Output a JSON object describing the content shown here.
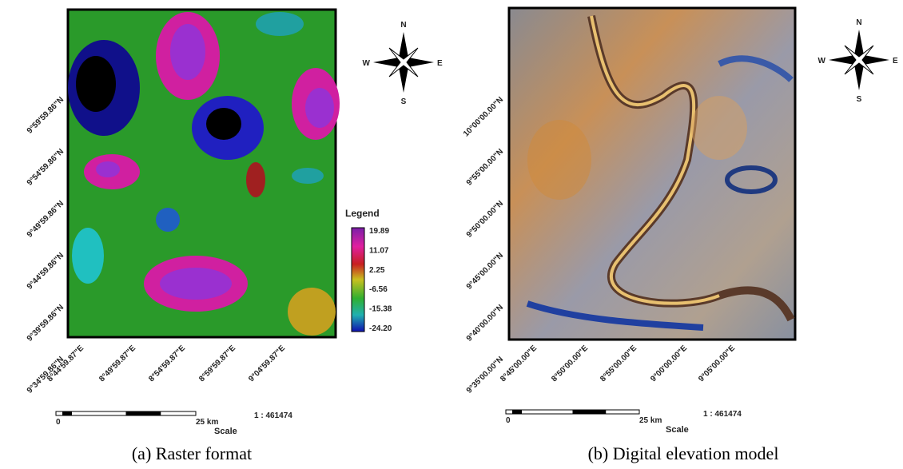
{
  "panels": [
    {
      "caption": "(a) Raster format",
      "lat_labels": [
        "9°59'59.86\"N",
        "9°54'59.86\"N",
        "9°49'59.86\"N",
        "9°44'59.86\"N",
        "9°39'59.86\"N",
        "9°34'59.86\"N"
      ],
      "lon_labels": [
        "8°44'59.87\"E",
        "8°49'59.87\"E",
        "8°54'59.87\"E",
        "8°59'59.87\"E",
        "9°04'59.87\"E"
      ],
      "compass": {
        "n": "N",
        "s": "S",
        "e": "E",
        "w": "W"
      },
      "legend": {
        "title": "Legend",
        "values": [
          "19.89",
          "11.07",
          "2.25",
          "-6.56",
          "-15.38",
          "-24.20"
        ]
      },
      "scale": {
        "start": "0",
        "end": "25 km",
        "label": "Scale",
        "ratio": "1 : 461474"
      }
    },
    {
      "caption": "(b) Digital elevation model",
      "lat_labels": [
        "10°00'00.00\"N",
        "9°55'00.00\"N",
        "9°50'00.00\"N",
        "9°45'00.00\"N",
        "9°40'00.00\"N",
        "9°35'00.00\"N"
      ],
      "lon_labels": [
        "8°45'00.00\"E",
        "8°50'00.00\"E",
        "8°55'00.00\"E",
        "9°00'00.00\"E",
        "9°05'00.00\"E"
      ],
      "compass": {
        "n": "N",
        "s": "S",
        "e": "E",
        "w": "W"
      },
      "scale": {
        "start": "0",
        "end": "25 km",
        "label": "Scale",
        "ratio": "1 : 461474"
      }
    }
  ]
}
